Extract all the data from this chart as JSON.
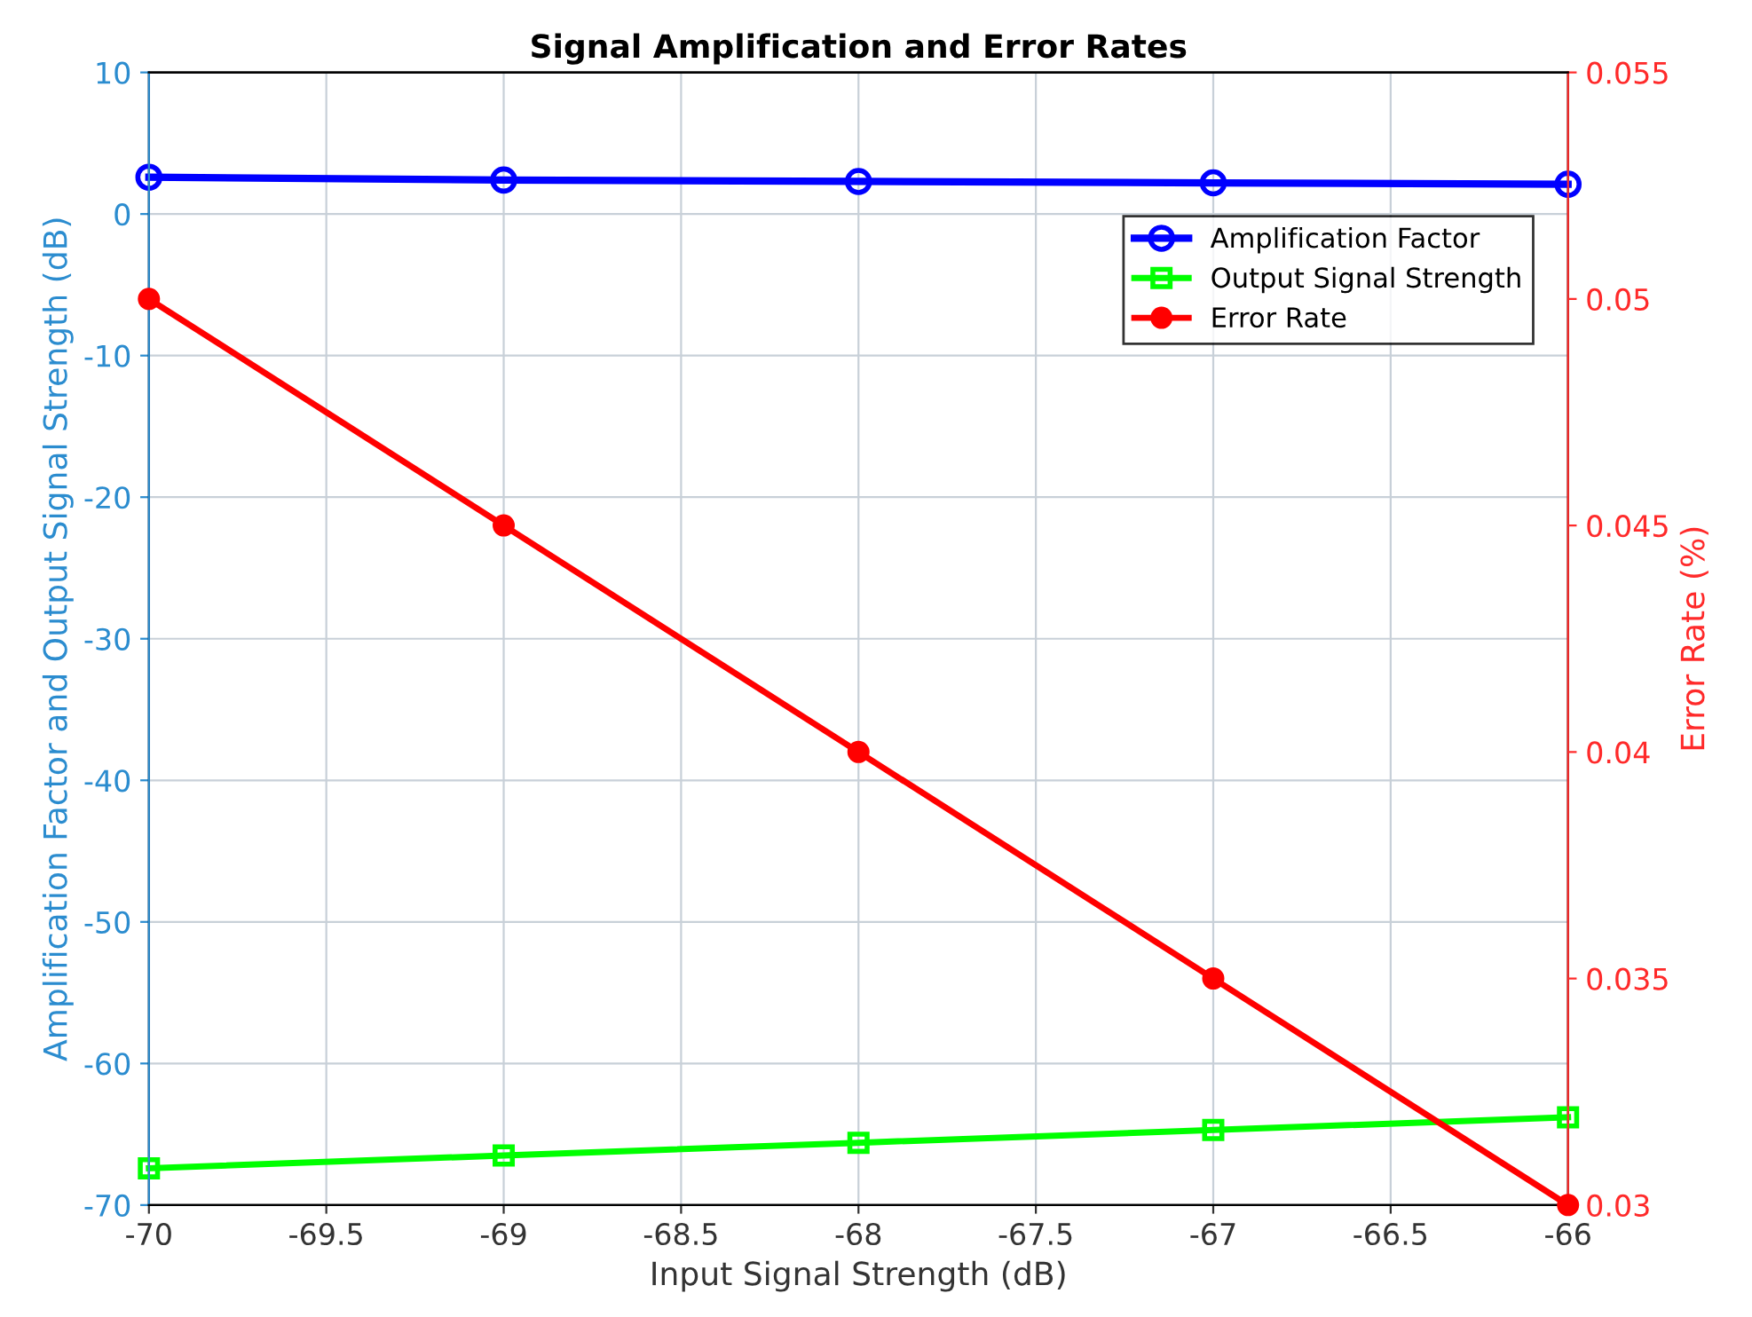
{
  "chart_data": {
    "type": "line",
    "title": "Signal Amplification and Error Rates",
    "xlabel": "Input Signal Strength (dB)",
    "ylabel": "Amplification Factor and Output Signal Strength (dB)",
    "y2label": "Error Rate (%)",
    "x": [
      -70,
      -69,
      -68,
      -67,
      -66
    ],
    "series": [
      {
        "name": "Amplification Factor",
        "color": "#0000ff",
        "marker": "circle",
        "values": [
          2.6,
          2.4,
          2.3,
          2.2,
          2.1
        ]
      },
      {
        "name": "Output Signal Strength",
        "color": "#00ff00",
        "marker": "square",
        "values": [
          -67.4,
          -66.5,
          -65.6,
          -64.7,
          -63.8
        ]
      },
      {
        "name": "Error Rate",
        "color": "#ff0000",
        "marker": "circle",
        "axis": "y2",
        "values": [
          0.05,
          0.045,
          0.04,
          0.035,
          0.03
        ]
      }
    ],
    "xlim": [
      -70,
      -66
    ],
    "xticks": [
      -70,
      -69.5,
      -69,
      -68.5,
      -68,
      -67.5,
      -67,
      -66.5,
      -66
    ],
    "ylim": [
      -70,
      10
    ],
    "yticks": [
      -70,
      -60,
      -50,
      -40,
      -30,
      -20,
      -10,
      0,
      10
    ],
    "y2lim": [
      0.03,
      0.055
    ],
    "y2ticks": [
      0.03,
      0.035,
      0.04,
      0.045,
      0.05,
      0.055
    ],
    "grid": true,
    "legend": "top right",
    "line_style": "solid"
  }
}
